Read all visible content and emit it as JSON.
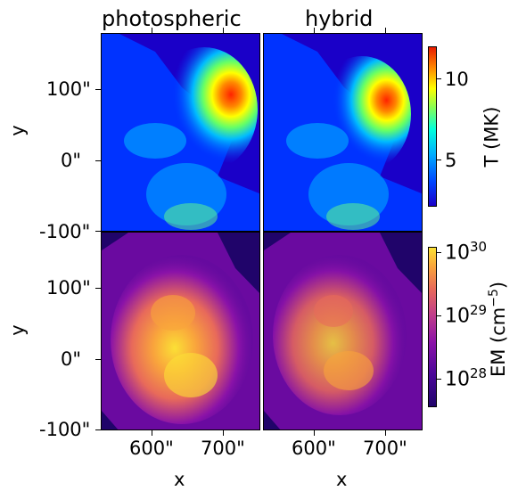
{
  "panels": {
    "col_titles": [
      "photospheric",
      "hybrid"
    ],
    "rows": [
      {
        "name": "temperature",
        "colorbar_label": "T (MK)",
        "colorbar_ticks": [
          "10",
          "5"
        ]
      },
      {
        "name": "emission-measure",
        "colorbar_label_main": "EM (cm",
        "colorbar_label_sup": "−5",
        "colorbar_label_end": ")",
        "colorbar_ticks": [
          {
            "base": "10",
            "exp": "30"
          },
          {
            "base": "10",
            "exp": "29"
          },
          {
            "base": "10",
            "exp": "28"
          }
        ]
      }
    ]
  },
  "axes": {
    "ylabel": "y",
    "xlabel": "x",
    "yticks": [
      "100\"",
      "0\"",
      "-100\""
    ],
    "xticks": [
      "600\"",
      "700\""
    ]
  },
  "colors": {
    "temp_map": [
      "#1a00c8",
      "#0033ff",
      "#00aaff",
      "#00ffee",
      "#88ff55",
      "#ffff00",
      "#ff8800",
      "#ff2200"
    ],
    "em_map": [
      "#20046a",
      "#4a0798",
      "#8a12a8",
      "#c13f8a",
      "#e86a5a",
      "#f9a43c",
      "#fbe035"
    ]
  }
}
